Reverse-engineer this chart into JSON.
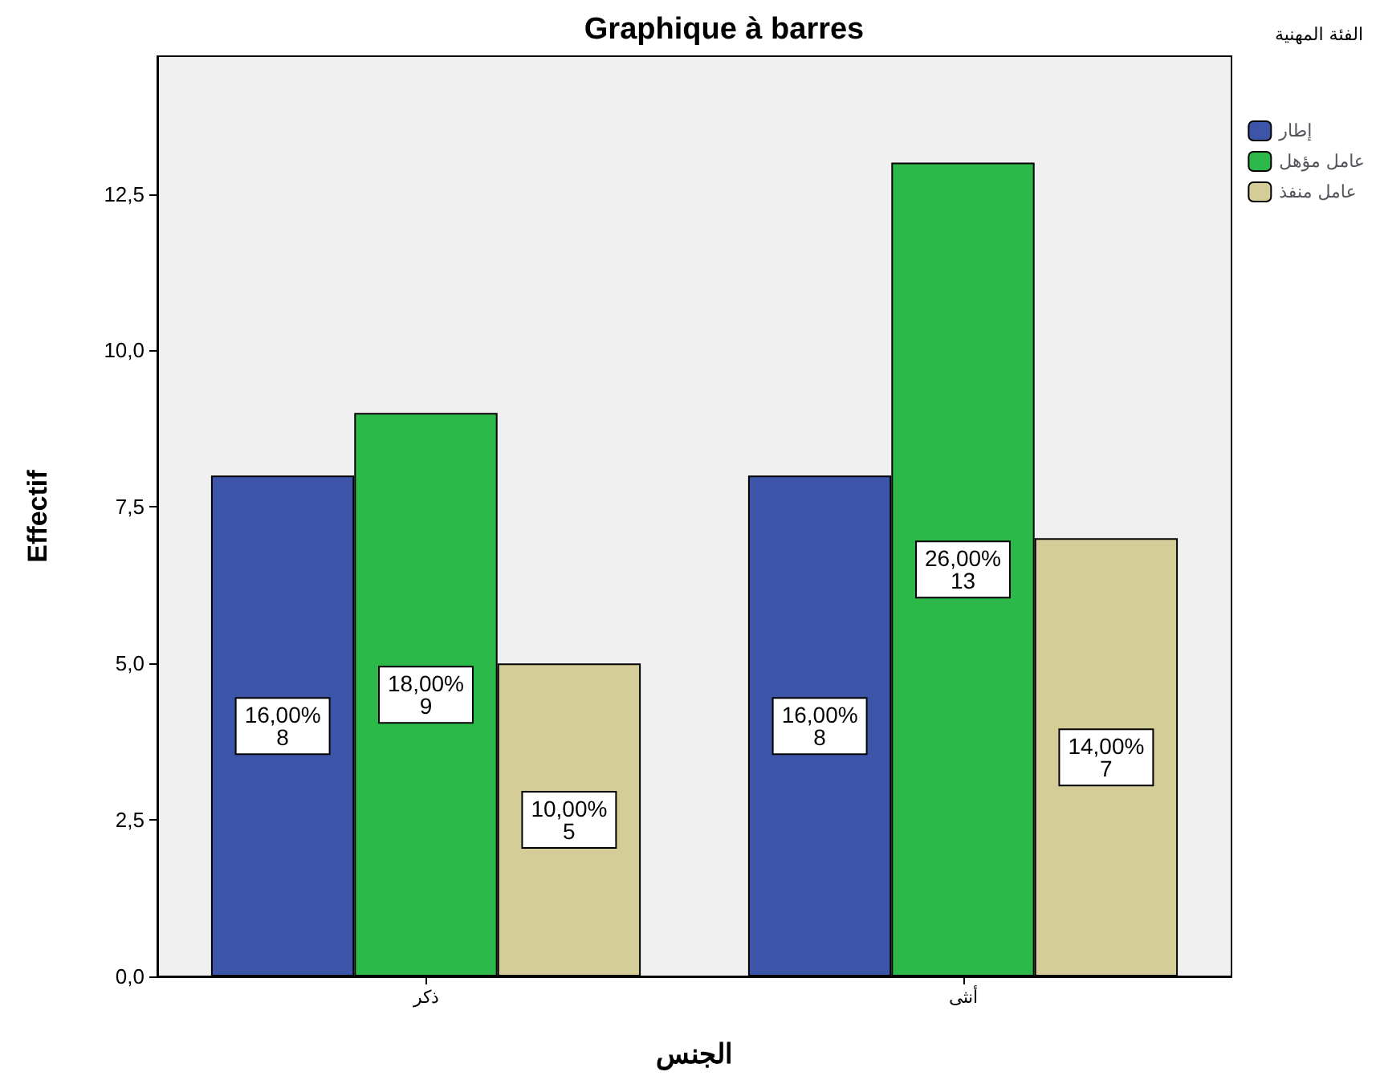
{
  "chart_data": {
    "type": "bar",
    "title": "Graphique à barres",
    "xlabel": "الجنس",
    "ylabel": "Effectif",
    "legend_title": "الفئة المهنية",
    "categories": [
      "ذكر",
      "أنثى"
    ],
    "series": [
      {
        "name": "إطار",
        "color": "#3c55a8",
        "values": [
          8,
          8
        ],
        "value_labels": [
          "16,00%\n8",
          "16,00%\n8"
        ]
      },
      {
        "name": "عامل مؤهل",
        "color": "#2db84a",
        "values": [
          9,
          13
        ],
        "value_labels": [
          "18,00%\n9",
          "26,00%\n13"
        ]
      },
      {
        "name": "عامل منفذ",
        "color": "#d4cd98",
        "values": [
          5,
          7
        ],
        "value_labels": [
          "10,00%\n5",
          "14,00%\n7"
        ]
      }
    ],
    "ylim": [
      0,
      14.7
    ],
    "yticks": [
      {
        "value": 0,
        "label": "0,0"
      },
      {
        "value": 2.5,
        "label": "2,5"
      },
      {
        "value": 5,
        "label": "5,0"
      },
      {
        "value": 7.5,
        "label": "7,5"
      },
      {
        "value": 10,
        "label": "10,0"
      },
      {
        "value": 12.5,
        "label": "12,5"
      }
    ],
    "grid": false,
    "legend": "top right"
  }
}
